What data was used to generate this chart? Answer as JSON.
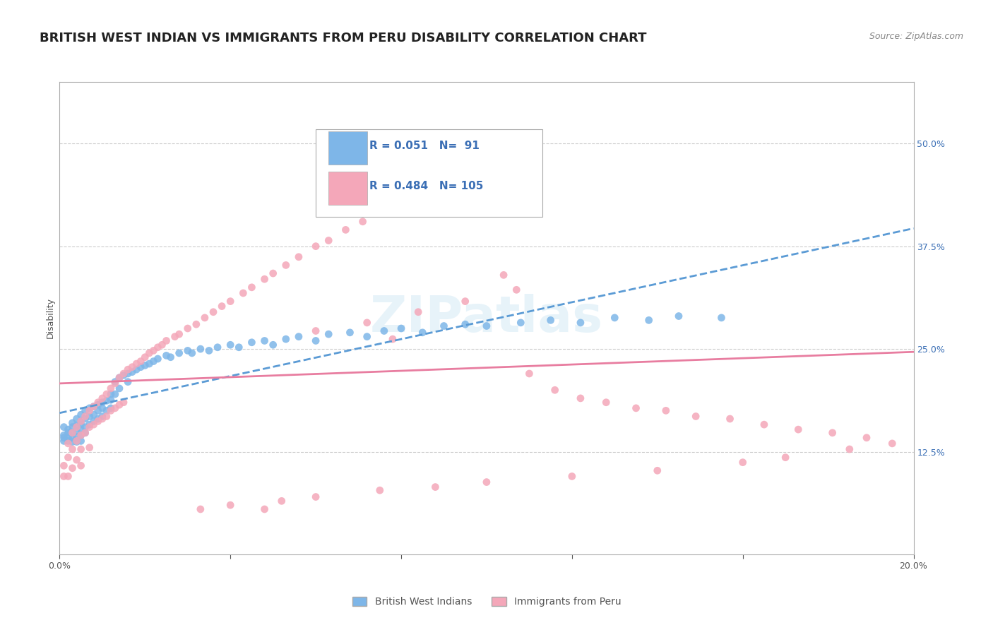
{
  "title": "BRITISH WEST INDIAN VS IMMIGRANTS FROM PERU DISABILITY CORRELATION CHART",
  "source_text": "Source: ZipAtlas.com",
  "xlabel": "",
  "ylabel": "Disability",
  "x_min": 0.0,
  "x_max": 0.2,
  "y_min": 0.0,
  "y_max": 0.575,
  "x_ticks": [
    0.0,
    0.02,
    0.04,
    0.06,
    0.08,
    0.1,
    0.12,
    0.14,
    0.16,
    0.18,
    0.2
  ],
  "x_tick_labels": [
    "0.0%",
    "",
    "",
    "",
    "",
    "",
    "",
    "",
    "",
    "",
    "20.0%"
  ],
  "y_tick_right": [
    0.125,
    0.25,
    0.375,
    0.5
  ],
  "y_tick_right_labels": [
    "12.5%",
    "25.0%",
    "37.5%",
    "50.0%"
  ],
  "gridline_y": [
    0.5,
    0.375,
    0.25,
    0.125
  ],
  "series1_name": "British West Indians",
  "series1_color": "#7EB6E8",
  "series1_line_color": "#5B9BD5",
  "series1_R": 0.051,
  "series1_N": 91,
  "series2_name": "Immigrants from Peru",
  "series2_color": "#F4A7B9",
  "series2_line_color": "#E87DA0",
  "series2_R": 0.484,
  "series2_N": 105,
  "background_color": "#FFFFFF",
  "watermark_text": "ZIPatlas",
  "legend_R_color": "#3B6FB5",
  "legend_N_color": "#3B6FB5",
  "title_fontsize": 13,
  "axis_label_fontsize": 9,
  "tick_fontsize": 9,
  "series1_x": [
    0.001,
    0.001,
    0.001,
    0.001,
    0.002,
    0.002,
    0.002,
    0.002,
    0.003,
    0.003,
    0.003,
    0.003,
    0.003,
    0.004,
    0.004,
    0.004,
    0.004,
    0.004,
    0.005,
    0.005,
    0.005,
    0.005,
    0.005,
    0.005,
    0.006,
    0.006,
    0.006,
    0.006,
    0.007,
    0.007,
    0.007,
    0.008,
    0.008,
    0.008,
    0.009,
    0.009,
    0.009,
    0.01,
    0.01,
    0.01,
    0.011,
    0.011,
    0.012,
    0.012,
    0.012,
    0.013,
    0.013,
    0.014,
    0.014,
    0.015,
    0.016,
    0.016,
    0.017,
    0.018,
    0.019,
    0.02,
    0.021,
    0.022,
    0.023,
    0.025,
    0.026,
    0.028,
    0.03,
    0.031,
    0.033,
    0.035,
    0.037,
    0.04,
    0.042,
    0.045,
    0.048,
    0.05,
    0.053,
    0.056,
    0.06,
    0.063,
    0.068,
    0.072,
    0.076,
    0.08,
    0.085,
    0.09,
    0.095,
    0.1,
    0.108,
    0.115,
    0.122,
    0.13,
    0.138,
    0.145,
    0.155
  ],
  "series1_y": [
    0.155,
    0.145,
    0.142,
    0.138,
    0.152,
    0.148,
    0.143,
    0.138,
    0.16,
    0.155,
    0.148,
    0.142,
    0.137,
    0.165,
    0.157,
    0.15,
    0.143,
    0.137,
    0.17,
    0.162,
    0.158,
    0.152,
    0.145,
    0.138,
    0.175,
    0.165,
    0.155,
    0.148,
    0.178,
    0.168,
    0.158,
    0.18,
    0.17,
    0.162,
    0.182,
    0.175,
    0.165,
    0.185,
    0.178,
    0.168,
    0.187,
    0.175,
    0.195,
    0.188,
    0.178,
    0.21,
    0.195,
    0.215,
    0.202,
    0.218,
    0.22,
    0.21,
    0.222,
    0.225,
    0.228,
    0.23,
    0.232,
    0.235,
    0.238,
    0.242,
    0.24,
    0.245,
    0.248,
    0.245,
    0.25,
    0.248,
    0.252,
    0.255,
    0.252,
    0.258,
    0.26,
    0.255,
    0.262,
    0.265,
    0.26,
    0.268,
    0.27,
    0.265,
    0.272,
    0.275,
    0.27,
    0.278,
    0.28,
    0.278,
    0.282,
    0.285,
    0.282,
    0.288,
    0.285,
    0.29,
    0.288
  ],
  "series2_x": [
    0.001,
    0.001,
    0.002,
    0.002,
    0.002,
    0.003,
    0.003,
    0.003,
    0.004,
    0.004,
    0.004,
    0.005,
    0.005,
    0.005,
    0.005,
    0.006,
    0.006,
    0.007,
    0.007,
    0.007,
    0.008,
    0.008,
    0.009,
    0.009,
    0.01,
    0.01,
    0.011,
    0.011,
    0.012,
    0.012,
    0.013,
    0.013,
    0.014,
    0.014,
    0.015,
    0.015,
    0.016,
    0.017,
    0.018,
    0.019,
    0.02,
    0.021,
    0.022,
    0.023,
    0.024,
    0.025,
    0.027,
    0.028,
    0.03,
    0.032,
    0.034,
    0.036,
    0.038,
    0.04,
    0.043,
    0.045,
    0.048,
    0.05,
    0.053,
    0.056,
    0.06,
    0.063,
    0.067,
    0.071,
    0.075,
    0.079,
    0.084,
    0.089,
    0.094,
    0.099,
    0.104,
    0.11,
    0.116,
    0.122,
    0.128,
    0.135,
    0.142,
    0.149,
    0.157,
    0.165,
    0.173,
    0.181,
    0.189,
    0.1,
    0.108,
    0.048,
    0.033,
    0.04,
    0.052,
    0.06,
    0.075,
    0.088,
    0.1,
    0.12,
    0.078,
    0.14,
    0.16,
    0.17,
    0.185,
    0.195,
    0.06,
    0.072,
    0.084,
    0.095,
    0.107
  ],
  "series2_y": [
    0.108,
    0.095,
    0.135,
    0.118,
    0.095,
    0.148,
    0.128,
    0.105,
    0.155,
    0.138,
    0.115,
    0.162,
    0.145,
    0.128,
    0.108,
    0.168,
    0.148,
    0.175,
    0.155,
    0.13,
    0.18,
    0.158,
    0.185,
    0.162,
    0.19,
    0.165,
    0.195,
    0.168,
    0.202,
    0.175,
    0.208,
    0.178,
    0.215,
    0.182,
    0.22,
    0.185,
    0.225,
    0.228,
    0.232,
    0.235,
    0.24,
    0.245,
    0.248,
    0.252,
    0.255,
    0.26,
    0.265,
    0.268,
    0.275,
    0.28,
    0.288,
    0.295,
    0.302,
    0.308,
    0.318,
    0.325,
    0.335,
    0.342,
    0.352,
    0.362,
    0.375,
    0.382,
    0.395,
    0.405,
    0.418,
    0.428,
    0.44,
    0.452,
    0.462,
    0.475,
    0.34,
    0.22,
    0.2,
    0.19,
    0.185,
    0.178,
    0.175,
    0.168,
    0.165,
    0.158,
    0.152,
    0.148,
    0.142,
    0.49,
    0.48,
    0.055,
    0.055,
    0.06,
    0.065,
    0.07,
    0.078,
    0.082,
    0.088,
    0.095,
    0.262,
    0.102,
    0.112,
    0.118,
    0.128,
    0.135,
    0.272,
    0.282,
    0.295,
    0.308,
    0.322
  ]
}
